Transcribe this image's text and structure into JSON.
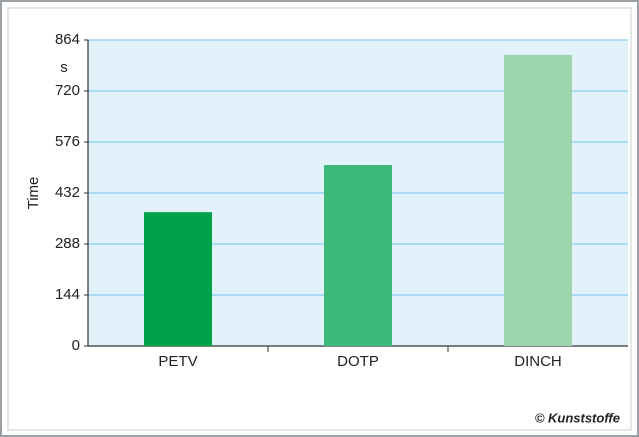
{
  "chart_data": {
    "type": "bar",
    "y_label": "Time",
    "y_unit": "s",
    "categories": [
      "PETV",
      "DOTP",
      "DINCH"
    ],
    "values": [
      378,
      511,
      822
    ],
    "colors": [
      "#00a14b",
      "#3dba7a",
      "#9dd5ad"
    ],
    "ylim": [
      0,
      864
    ],
    "yticks": [
      0,
      144,
      288,
      432,
      576,
      720,
      864
    ],
    "grid": true,
    "credit": "© Kunststoffe"
  }
}
